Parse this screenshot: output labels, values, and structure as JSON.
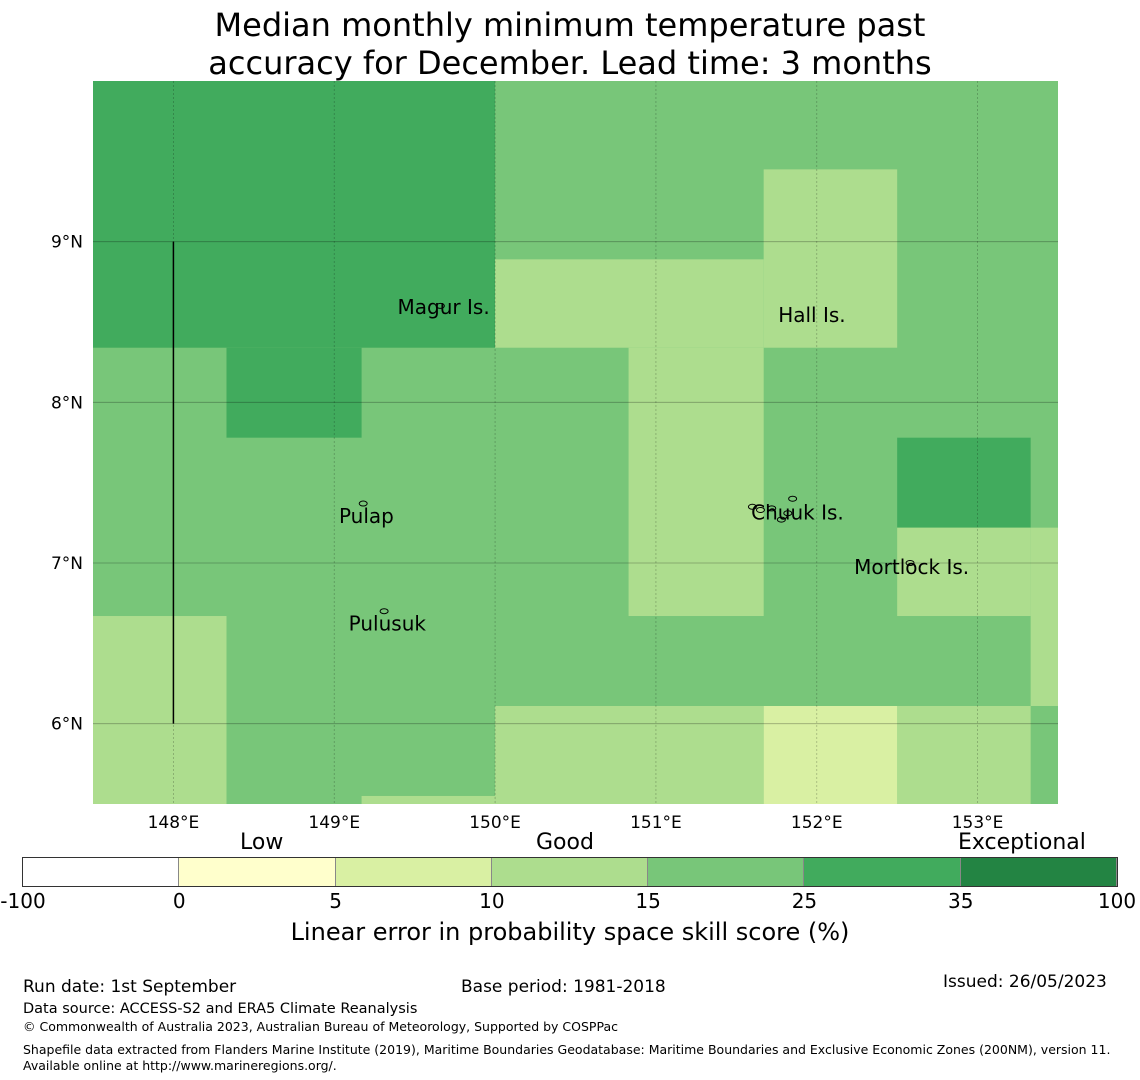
{
  "title": {
    "line1": "Median monthly minimum temperature past",
    "line2": "accuracy for December. Lead time: 3 months"
  },
  "map": {
    "lon_labels": [
      "148°E",
      "149°E",
      "150°E",
      "151°E",
      "152°E",
      "153°E"
    ],
    "lat_labels": [
      "9°N",
      "8°N",
      "7°N",
      "6°N"
    ],
    "lon_range": [
      147.5,
      153.5
    ],
    "lat_range": [
      5.5,
      10.0
    ],
    "places": [
      {
        "name": "Magur Is.",
        "lon": 149.68,
        "lat": 8.55
      },
      {
        "name": "Hall Is.",
        "lon": 151.97,
        "lat": 8.5
      },
      {
        "name": "Pulap",
        "lon": 149.2,
        "lat": 7.25
      },
      {
        "name": "Chuuk Is.",
        "lon": 151.88,
        "lat": 7.27
      },
      {
        "name": "Mortlock Is.",
        "lon": 152.59,
        "lat": 6.93
      },
      {
        "name": "Pulusuk",
        "lon": 149.33,
        "lat": 6.58
      }
    ],
    "grid_cells": [
      {
        "lon": [
          147.5,
          150.0
        ],
        "lat": [
          8.34,
          10.0
        ],
        "class": 5
      },
      {
        "lon": [
          148.33,
          149.17
        ],
        "lat": [
          7.78,
          8.34
        ],
        "class": 5
      },
      {
        "lon": [
          152.5,
          153.33
        ],
        "lat": [
          7.22,
          7.78
        ],
        "class": 5
      },
      {
        "lon": [
          147.5,
          148.33
        ],
        "lat": [
          5.5,
          6.67
        ],
        "class": 3
      },
      {
        "lon": [
          150.0,
          151.67
        ],
        "lat": [
          8.34,
          8.89
        ],
        "class": 3
      },
      {
        "lon": [
          151.67,
          152.5
        ],
        "lat": [
          8.34,
          9.45
        ],
        "class": 3
      },
      {
        "lon": [
          150.83,
          151.67
        ],
        "lat": [
          6.67,
          8.34
        ],
        "class": 3
      },
      {
        "lon": [
          152.5,
          153.33
        ],
        "lat": [
          6.67,
          7.22
        ],
        "class": 3
      },
      {
        "lon": [
          153.33,
          153.5
        ],
        "lat": [
          6.11,
          7.22
        ],
        "class": 3
      },
      {
        "lon": [
          150.0,
          151.67
        ],
        "lat": [
          5.5,
          6.11
        ],
        "class": 3
      },
      {
        "lon": [
          152.5,
          153.33
        ],
        "lat": [
          5.5,
          6.11
        ],
        "class": 3
      },
      {
        "lon": [
          149.17,
          150.0
        ],
        "lat": [
          5.5,
          5.55
        ],
        "class": 3
      },
      {
        "lon": [
          151.67,
          152.5
        ],
        "lat": [
          5.5,
          6.11
        ],
        "class": 2
      }
    ],
    "default_class": 4
  },
  "colorbar": {
    "ticks": [
      "-100",
      "0",
      "5",
      "10",
      "15",
      "25",
      "35",
      "100"
    ],
    "colors": [
      "#ffffff",
      "#ffffcc",
      "#d9f0a3",
      "#addd8e",
      "#78c679",
      "#41ab5d",
      "#238443"
    ],
    "categories": [
      "Low",
      "Good",
      "Exceptional"
    ],
    "label": "Linear error in probability space skill score (%)"
  },
  "footer": {
    "run_date": "Run date: 1st September",
    "base_period": "Base period: 1981-2018",
    "issued": "Issued: 26/05/2023",
    "data_source": "Data source: ACCESS-S2 and ERA5 Climate Reanalysis",
    "copyright": "© Commonwealth of Australia 2023, Australian Bureau of Meteorology, Supported by COSPPac",
    "shapefile": "Shapefile data extracted from Flanders Marine Institute (2019), Maritime Boundaries Geodatabase: Maritime Boundaries and Exclusive Economic Zones (200NM), version 11. Available online at http://www.marineregions.org/."
  }
}
